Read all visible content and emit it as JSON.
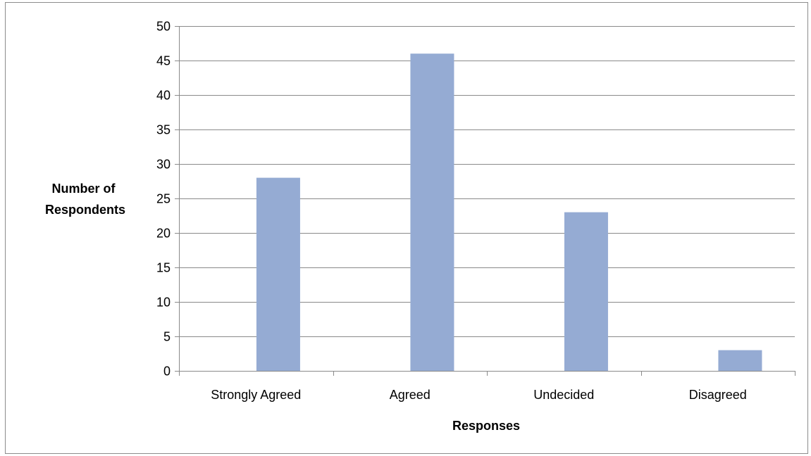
{
  "chart_data": {
    "type": "bar",
    "title": "",
    "xlabel": "Responses",
    "ylabel": [
      "Number of",
      "Respondents"
    ],
    "categories": [
      "Strongly Agreed",
      "Agreed",
      "Undecided",
      "Disagreed"
    ],
    "values": [
      28,
      46,
      23,
      3
    ],
    "ylim": [
      0,
      50
    ],
    "yticks": [
      0,
      5,
      10,
      15,
      20,
      25,
      30,
      35,
      40,
      45,
      50
    ],
    "grid": true,
    "legend": "none",
    "colors": {
      "bar": "#95abd3",
      "gridline": "#8a8a8a",
      "axis": "#8a8a8a",
      "frame": "#8c8c8c"
    }
  }
}
